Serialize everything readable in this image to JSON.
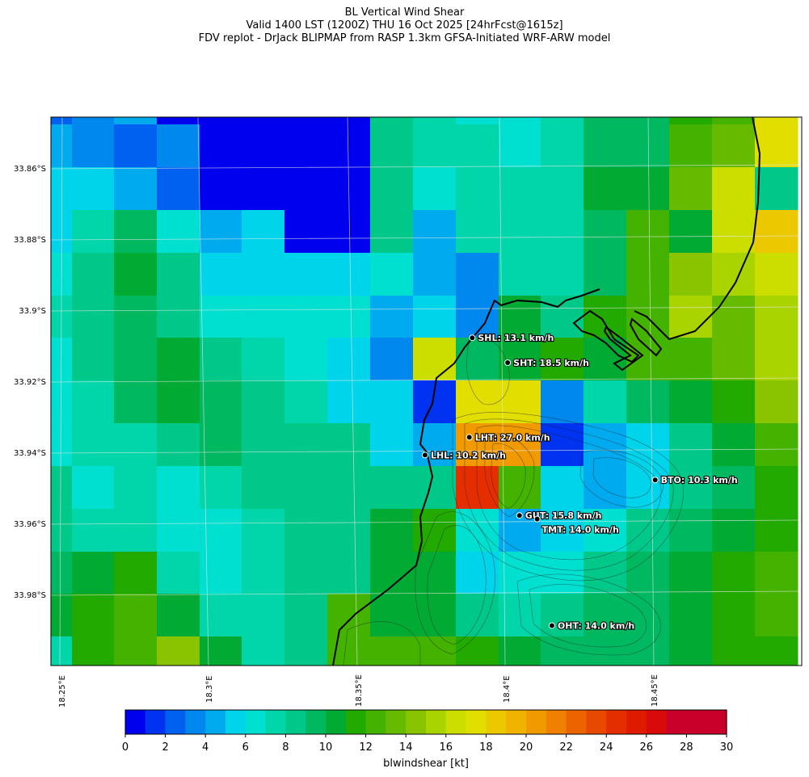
{
  "titles": [
    "BL Vertical Wind Shear",
    "Valid 1400 LST (1200Z) THU 16 Oct 2025 [24hrFcst@1615z]",
    "FDV replot - DrJack BLIPMAP from RASP 1.3km GFSA-Initiated WRF-ARW model"
  ],
  "lat_labels": [
    "33.86°S",
    "33.88°S",
    "33.9°S",
    "33.92°S",
    "33.94°S",
    "33.96°S",
    "33.98°S"
  ],
  "lon_labels": [
    "18.25°E",
    "18.3°E",
    "18.35°E",
    "18.4°E",
    "18.45°E"
  ],
  "stations": [
    {
      "name": "SHL",
      "label": "SHL: 13.1 km/h",
      "lon": 18.389,
      "lat": -33.908
    },
    {
      "name": "SHT",
      "label": "SHT: 18.5 km/h",
      "lon": 18.401,
      "lat": -33.915
    },
    {
      "name": "LHT",
      "label": "LHT: 27.0 km/h",
      "lon": 18.388,
      "lat": -33.936
    },
    {
      "name": "LHL",
      "label": "LHL: 10.2 km/h",
      "lon": 18.373,
      "lat": -33.941
    },
    {
      "name": "BTO",
      "label": "BTO: 10.3 km/h",
      "lon": 18.451,
      "lat": -33.948
    },
    {
      "name": "GUT",
      "label": "GUT: 15.8 km/h",
      "lon": 18.405,
      "lat": -33.958
    },
    {
      "name": "TMT",
      "label": "TMT: 14.0 km/h",
      "lon": 18.411,
      "lat": -33.959
    },
    {
      "name": "OHT",
      "label": "OHT: 14.0 km/h",
      "lon": 18.416,
      "lat": -33.989
    }
  ],
  "colorbar": {
    "label": "blwindshear [kt]",
    "min": 0,
    "max": 30,
    "step": 1,
    "ticks": [
      "0",
      "2",
      "4",
      "6",
      "8",
      "10",
      "12",
      "14",
      "16",
      "18",
      "20",
      "22",
      "24",
      "26",
      "28",
      "30"
    ],
    "colors": [
      "#0000ee",
      "#0033f0",
      "#0060f0",
      "#0088ee",
      "#00aaee",
      "#00d4ea",
      "#00e0d0",
      "#00d6aa",
      "#00c888",
      "#00b860",
      "#00aa33",
      "#22aa00",
      "#44b300",
      "#66bb00",
      "#88c400",
      "#aad400",
      "#ccdd00",
      "#e2df00",
      "#ecc800",
      "#f0b400",
      "#f09a00",
      "#ef8000",
      "#ec6400",
      "#e84800",
      "#e42e00",
      "#de1a00",
      "#d80a0a",
      "#c8002a"
    ]
  },
  "grid_values": [
    [
      2,
      3,
      4,
      0,
      0,
      0,
      0,
      0,
      8,
      7,
      6,
      6,
      7,
      9,
      9,
      11,
      12,
      17
    ],
    [
      4,
      3,
      2,
      3,
      0,
      0,
      0,
      0,
      8,
      7,
      7,
      6,
      7,
      9,
      9,
      12,
      13,
      17
    ],
    [
      5,
      5,
      4,
      2,
      0,
      0,
      0,
      0,
      8,
      6,
      7,
      7,
      7,
      10,
      10,
      13,
      16,
      8
    ],
    [
      5,
      7,
      9,
      6,
      4,
      5,
      0,
      0,
      8,
      4,
      7,
      7,
      7,
      9,
      12,
      10,
      16,
      18
    ],
    [
      6,
      8,
      10,
      8,
      5,
      5,
      5,
      5,
      6,
      4,
      3,
      7,
      7,
      9,
      12,
      14,
      15,
      16
    ],
    [
      7,
      8,
      9,
      8,
      6,
      6,
      6,
      6,
      4,
      5,
      3,
      10,
      8,
      11,
      12,
      15,
      13,
      15
    ],
    [
      6,
      8,
      9,
      10,
      8,
      7,
      6,
      5,
      3,
      16,
      9,
      10,
      11,
      10,
      12,
      12,
      13,
      15
    ],
    [
      6,
      7,
      9,
      10,
      9,
      8,
      7,
      5,
      5,
      1,
      17,
      17,
      3,
      7,
      9,
      10,
      11,
      14
    ],
    [
      6,
      7,
      7,
      8,
      9,
      8,
      8,
      8,
      5,
      4,
      20,
      20,
      1,
      4,
      5,
      8,
      10,
      12
    ],
    [
      8,
      6,
      7,
      6,
      7,
      8,
      8,
      8,
      8,
      8,
      24,
      12,
      5,
      4,
      5,
      8,
      9,
      11
    ],
    [
      8,
      7,
      7,
      6,
      6,
      7,
      8,
      8,
      10,
      11,
      6,
      4,
      5,
      6,
      8,
      9,
      10,
      11
    ],
    [
      9,
      10,
      11,
      7,
      6,
      7,
      8,
      8,
      10,
      10,
      5,
      6,
      6,
      8,
      9,
      10,
      11,
      12
    ],
    [
      10,
      11,
      12,
      10,
      7,
      7,
      8,
      12,
      10,
      10,
      8,
      7,
      8,
      9,
      9,
      10,
      11,
      12
    ],
    [
      7,
      11,
      12,
      14,
      10,
      7,
      8,
      12,
      12,
      12,
      11,
      10,
      9,
      9,
      9,
      10,
      11,
      11
    ]
  ]
}
